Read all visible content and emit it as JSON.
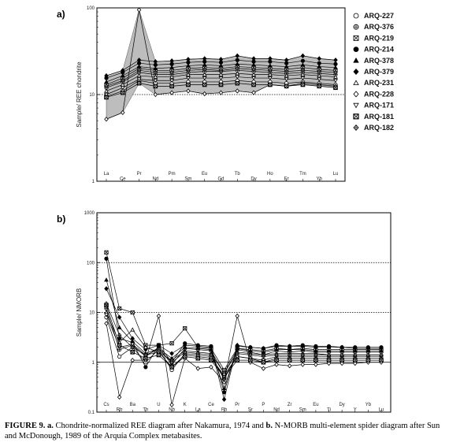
{
  "caption": {
    "fig_label": "FIGURE 9.",
    "a": "a.",
    "part1": " Chondrite-normalized REE diagram after Nakamura, 1974 and ",
    "b": "b.",
    "part2": " N-MORB multi-element spider diagram after Sun and McDonough, 1989 of the Arquía Complex metabasites."
  },
  "chart_data": [
    {
      "type": "line",
      "panel_label": "a)",
      "ylabel": "Sample/ REE chondrite",
      "yscale": "log",
      "ylim": [
        1,
        100
      ],
      "yticks": [
        "1",
        "10",
        "100"
      ],
      "categories": [
        "La",
        "Ce",
        "Pr",
        "Nd",
        "Pm",
        "Sm",
        "Eu",
        "Gd",
        "Tb",
        "Dy",
        "Ho",
        "Er",
        "Tm",
        "Yb",
        "Lu"
      ],
      "category_rows": [
        "top",
        "bottom",
        "top",
        "bottom",
        "top",
        "bottom",
        "top",
        "bottom",
        "top",
        "bottom",
        "top",
        "bottom",
        "top",
        "bottom",
        "top"
      ],
      "reference_line": 10,
      "legend_position": "right",
      "shaded_field": true,
      "series": [
        {
          "name": "ARQ-227",
          "marker": "circle-open",
          "values": [
            9.5,
            11,
            14.5,
            13.5,
            13.5,
            14,
            14,
            14,
            14.5,
            14,
            14,
            13.5,
            14,
            13.5,
            13
          ]
        },
        {
          "name": "ARQ-376",
          "marker": "circle-plus",
          "values": [
            12,
            14,
            18,
            17,
            17,
            18,
            18.5,
            18.5,
            19,
            18.5,
            18,
            17.5,
            18,
            17.5,
            17
          ]
        },
        {
          "name": "ARQ-219",
          "marker": "square-x",
          "values": [
            13,
            15.5,
            20,
            19,
            19,
            20,
            20.5,
            20,
            21,
            20.5,
            20,
            19.5,
            20.5,
            19.5,
            19
          ]
        },
        {
          "name": "ARQ-214",
          "marker": "circle-filled",
          "values": [
            15.5,
            18,
            23,
            22,
            22.5,
            23.5,
            24,
            23.5,
            25,
            24,
            24,
            23,
            24.5,
            23,
            22.5
          ]
        },
        {
          "name": "ARQ-378",
          "marker": "triangle-filled",
          "values": [
            14,
            16.5,
            21,
            20,
            20.5,
            21.5,
            22,
            21.5,
            22.5,
            22,
            21.5,
            21,
            22,
            21,
            20.5
          ]
        },
        {
          "name": "ARQ-379",
          "marker": "diamond-filled",
          "values": [
            16.5,
            19,
            25,
            24,
            24.5,
            25.5,
            26,
            25.5,
            28,
            26,
            26,
            25,
            28,
            26,
            25
          ]
        },
        {
          "name": "ARQ-231",
          "marker": "triangle-open",
          "values": [
            11,
            13,
            16.5,
            16,
            16,
            17,
            17,
            17,
            17.5,
            17,
            17,
            16.5,
            17,
            16.5,
            16
          ]
        },
        {
          "name": "ARQ-228",
          "marker": "diamond-open",
          "values": [
            5.2,
            6.2,
            95,
            10,
            10.5,
            11,
            10.2,
            10.5,
            11,
            10.5,
            13,
            12.5,
            13.5,
            13,
            12.5
          ]
        },
        {
          "name": "ARQ-171",
          "marker": "triangle-down-open",
          "values": [
            10,
            12,
            15,
            14.5,
            14.5,
            15.5,
            15.5,
            15.5,
            16,
            15.5,
            15.5,
            15,
            15.5,
            15,
            14.5
          ]
        },
        {
          "name": "ARQ-181",
          "marker": "square-x-bold",
          "values": [
            9.3,
            10.5,
            13.5,
            12.5,
            12.5,
            13,
            13,
            13,
            13.5,
            13,
            13,
            12.5,
            13,
            12.5,
            12
          ]
        },
        {
          "name": "ARQ-182",
          "marker": "diamond-plus",
          "values": [
            12.5,
            14.5,
            19,
            18,
            18,
            19,
            19.5,
            19,
            20,
            19.5,
            19,
            18.5,
            19,
            18.5,
            18
          ]
        }
      ]
    },
    {
      "type": "line",
      "panel_label": "b)",
      "ylabel": "Sample/ NMORB",
      "yscale": "log",
      "ylim": [
        0.1,
        1000
      ],
      "yticks": [
        "0.1",
        "1",
        "10",
        "100",
        "1000"
      ],
      "categories": [
        "Cs",
        "Rb",
        "Ba",
        "Th",
        "U",
        "Nb",
        "K",
        "La",
        "Ce",
        "Pb",
        "Pr",
        "Sr",
        "P",
        "Nd",
        "Zr",
        "Sm",
        "Eu",
        "Ti",
        "Dy",
        "Y",
        "Yb",
        "Lu"
      ],
      "category_rows": [
        "top",
        "bottom",
        "top",
        "bottom",
        "top",
        "bottom",
        "top",
        "bottom",
        "top",
        "bottom",
        "top",
        "bottom",
        "top",
        "bottom",
        "top",
        "bottom",
        "top",
        "bottom",
        "top",
        "bottom",
        "top",
        "bottom"
      ],
      "reference_lines": [
        1,
        10,
        100
      ],
      "series": [
        {
          "name": "ARQ-227",
          "marker": "circle-open",
          "values": [
            8,
            1.3,
            2.0,
            1.0,
            1.8,
            0.7,
            1.5,
            1.4,
            1.3,
            0.5,
            1.3,
            1.2,
            1.0,
            1.2,
            1.2,
            1.2,
            1.2,
            1.2,
            1.2,
            1.2,
            1.2,
            1.2
          ]
        },
        {
          "name": "ARQ-376",
          "marker": "circle-plus",
          "values": [
            12,
            1.8,
            2.2,
            1.3,
            2.0,
            0.9,
            1.9,
            1.8,
            1.7,
            0.6,
            1.8,
            1.6,
            1.4,
            1.7,
            1.6,
            1.7,
            1.6,
            1.6,
            1.6,
            1.6,
            1.6,
            1.6
          ]
        },
        {
          "name": "ARQ-219",
          "marker": "square-x",
          "values": [
            160,
            12,
            10,
            2.2,
            2.2,
            2.4,
            4.8,
            2.0,
            1.9,
            0.7,
            1.9,
            1.8,
            1.7,
            1.9,
            1.8,
            1.9,
            1.8,
            1.8,
            1.8,
            1.8,
            1.8,
            1.8
          ]
        },
        {
          "name": "ARQ-214",
          "marker": "circle-filled",
          "values": [
            120,
            3,
            2.5,
            0.8,
            2.2,
            1.0,
            2.4,
            2.2,
            2.1,
            0.25,
            2.1,
            2.0,
            1.9,
            2.2,
            2.1,
            2.2,
            2.1,
            2.1,
            2.0,
            2.0,
            2.0,
            2.0
          ]
        },
        {
          "name": "ARQ-378",
          "marker": "triangle-filled",
          "values": [
            45,
            5,
            2.6,
            1.5,
            1.9,
            1.2,
            2.0,
            1.9,
            1.8,
            0.3,
            1.9,
            1.7,
            1.6,
            1.8,
            1.8,
            1.8,
            1.7,
            1.7,
            1.7,
            1.7,
            1.7,
            1.7
          ]
        },
        {
          "name": "ARQ-379",
          "marker": "diamond-filled",
          "values": [
            30,
            8,
            3.0,
            1.8,
            2.2,
            1.5,
            2.2,
            2.1,
            2.0,
            0.18,
            2.2,
            2.0,
            1.9,
            2.1,
            2.1,
            2.1,
            2.0,
            2.0,
            2.0,
            1.9,
            1.9,
            1.9
          ]
        },
        {
          "name": "ARQ-231",
          "marker": "triangle-open",
          "values": [
            10,
            2.5,
            4.5,
            2.0,
            1.6,
            1.1,
            1.7,
            1.6,
            1.5,
            0.6,
            1.6,
            1.5,
            1.4,
            1.5,
            1.5,
            1.5,
            1.5,
            1.4,
            1.4,
            1.4,
            1.4,
            1.4
          ]
        },
        {
          "name": "ARQ-228",
          "marker": "diamond-open",
          "values": [
            6,
            0.2,
            1.1,
            1.1,
            8.5,
            0.14,
            1.2,
            0.75,
            0.8,
            0.4,
            8.5,
            1.0,
            0.75,
            0.9,
            0.85,
            0.9,
            0.9,
            0.95,
            0.95,
            0.95,
            1.0,
            1.0
          ]
        },
        {
          "name": "ARQ-171",
          "marker": "triangle-down-open",
          "values": [
            9,
            2.0,
            2.3,
            1.4,
            1.6,
            0.8,
            1.4,
            1.3,
            1.2,
            0.55,
            1.3,
            1.2,
            1.1,
            1.3,
            1.3,
            1.3,
            1.3,
            1.3,
            1.3,
            1.3,
            1.3,
            1.3
          ]
        },
        {
          "name": "ARQ-181",
          "marker": "square-x-bold",
          "values": [
            14,
            2.2,
            1.6,
            1.2,
            1.4,
            0.8,
            1.3,
            1.2,
            1.1,
            0.5,
            1.1,
            1.1,
            1.0,
            1.1,
            1.1,
            1.1,
            1.1,
            1.1,
            1.1,
            1.1,
            1.1,
            1.1
          ]
        },
        {
          "name": "ARQ-182",
          "marker": "diamond-plus",
          "values": [
            15,
            3.5,
            2.0,
            1.4,
            1.8,
            1.0,
            1.6,
            1.5,
            1.4,
            0.45,
            1.5,
            1.4,
            1.3,
            1.4,
            1.4,
            1.4,
            1.4,
            1.4,
            1.4,
            1.4,
            1.4,
            1.4
          ]
        }
      ]
    }
  ]
}
